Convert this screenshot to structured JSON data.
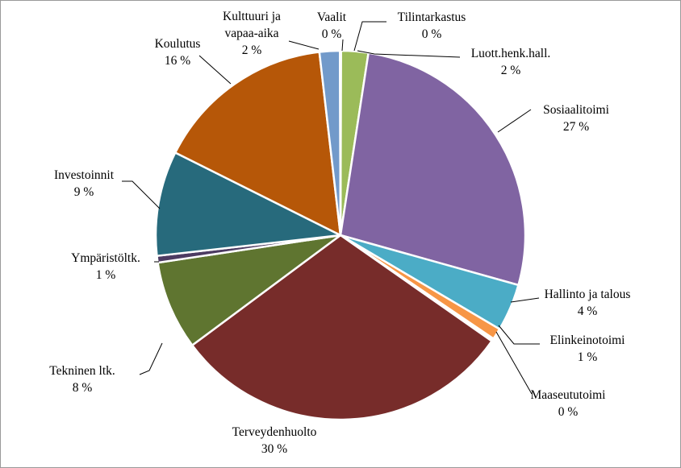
{
  "chart_data": {
    "type": "pie",
    "title": "",
    "start_angle_deg": 0,
    "direction": "clockwise",
    "slices": [
      {
        "name_lines": [
          "Tilintarkastus"
        ],
        "label": "0 %",
        "value": 0.05,
        "color": "#ffffff"
      },
      {
        "name_lines": [
          "Luott.henk.hall."
        ],
        "label": "2 %",
        "value": 2.4,
        "color": "#9bbb59"
      },
      {
        "name_lines": [
          "Sosiaalitoimi"
        ],
        "label": "27 %",
        "value": 27.3,
        "color": "#8064a2"
      },
      {
        "name_lines": [
          "Hallinto  ja talous"
        ],
        "label": "4 %",
        "value": 4.2,
        "color": "#4bacc6"
      },
      {
        "name_lines": [
          "Elinkeinotoimi"
        ],
        "label": "1 %",
        "value": 1.0,
        "color": "#f79646"
      },
      {
        "name_lines": [
          "Maaseututoimi"
        ],
        "label": "0 %",
        "value": 0.25,
        "color": "#ffffff"
      },
      {
        "name_lines": [
          "Terveydenhuolto"
        ],
        "label": "30 %",
        "value": 30.5,
        "color": "#772c2a"
      },
      {
        "name_lines": [
          "Tekninen ltk."
        ],
        "label": "8 %",
        "value": 7.9,
        "color": "#5f7530"
      },
      {
        "name_lines": [
          "Ympäristöltk."
        ],
        "label": "1 %",
        "value": 0.6,
        "color": "#4d3b62"
      },
      {
        "name_lines": [
          "Investoinnit"
        ],
        "label": "9 %",
        "value": 9.3,
        "color": "#276a7c"
      },
      {
        "name_lines": [
          "Koulutus"
        ],
        "label": "16 %",
        "value": 16.0,
        "color": "#b65708"
      },
      {
        "name_lines": [
          "Kulttuuri  ja",
          "vapaa-aika"
        ],
        "label": "2 %",
        "value": 1.8,
        "color": "#729aca"
      },
      {
        "name_lines": [
          "Vaalit"
        ],
        "label": "0 %",
        "value": 0.05,
        "color": "#ffffff"
      }
    ]
  }
}
